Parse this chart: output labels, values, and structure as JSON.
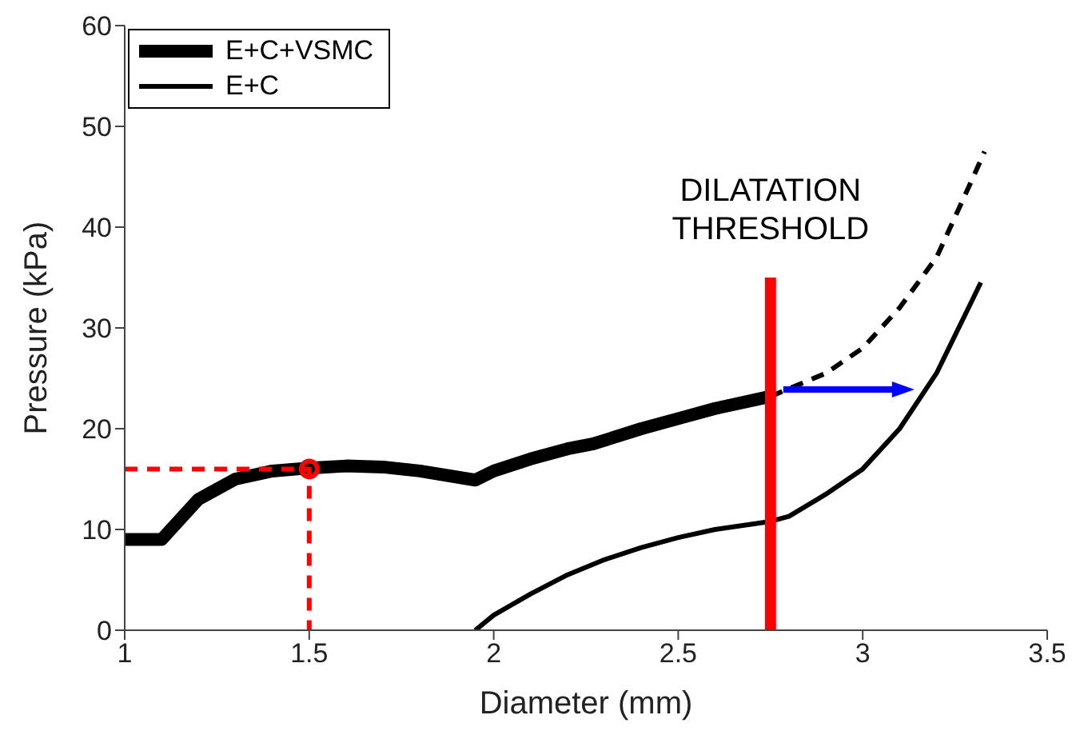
{
  "chart_data": {
    "type": "line",
    "xlabel": "Diameter (mm)",
    "ylabel": "Pressure (kPa)",
    "xlim": [
      1,
      3.5
    ],
    "ylim": [
      0,
      60
    ],
    "xticks": [
      1,
      1.5,
      2,
      2.5,
      3,
      3.5
    ],
    "yticks": [
      0,
      10,
      20,
      30,
      40,
      50,
      60
    ],
    "legend": "top left",
    "marker": "none",
    "series": [
      {
        "name": "E+C+VSMC",
        "color": "#000000",
        "line_style": "solid",
        "x": [
          1,
          1.1,
          1.2,
          1.3,
          1.4,
          1.5,
          1.6,
          1.7,
          1.8,
          1.95,
          2.0,
          2.1,
          2.2,
          2.27,
          2.4,
          2.5,
          2.6,
          2.75
        ],
        "values": [
          9,
          9,
          13,
          15,
          15.8,
          16.1,
          16.3,
          16.2,
          15.8,
          14.9,
          15.8,
          17,
          18,
          18.5,
          20,
          21,
          22,
          23.2
        ]
      },
      {
        "color": "#000000",
        "line_style": "dashed",
        "x": [
          2.75,
          2.9,
          3.0,
          3.1,
          3.2,
          3.3,
          3.33
        ],
        "values": [
          23.2,
          25.5,
          28,
          32,
          37,
          45,
          47.5
        ]
      },
      {
        "name": "E+C",
        "color": "#000000",
        "line_style": "solid",
        "x": [
          1.95,
          2.0,
          2.1,
          2.2,
          2.3,
          2.4,
          2.5,
          2.6,
          2.75,
          2.8,
          2.9,
          3.0,
          3.1,
          3.2,
          3.3,
          3.32
        ],
        "values": [
          0,
          1.5,
          3.6,
          5.5,
          7,
          8.2,
          9.2,
          10,
          10.8,
          11.3,
          13.5,
          16,
          20,
          25.5,
          33,
          34.5
        ]
      },
      {
        "color": "#ff0000",
        "line_style": "dashed",
        "x": [
          1,
          1.5,
          1.5
        ],
        "values": [
          16,
          16,
          0
        ]
      },
      {
        "type": "scatter",
        "color": "#ff0000",
        "marker": "circle",
        "x": [
          1.5
        ],
        "values": [
          16
        ]
      },
      {
        "color": "#ff0000",
        "line_style": "solid",
        "x": [
          2.75,
          2.75
        ],
        "values": [
          0,
          35
        ]
      }
    ],
    "annotations": [
      {
        "text": "DILATATION THRESHOLD",
        "x": 2.75,
        "y": 35
      }
    ]
  }
}
